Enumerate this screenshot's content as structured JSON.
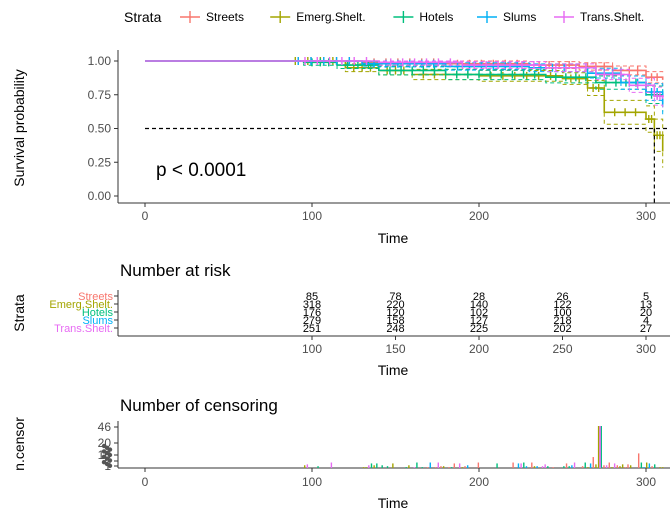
{
  "legend": {
    "title": "Strata",
    "items": [
      {
        "label": "Streets",
        "color": "#F8766D"
      },
      {
        "label": "Emerg.Shelt.",
        "color": "#A3A500"
      },
      {
        "label": "Hotels",
        "color": "#00BF7D"
      },
      {
        "label": "Slums",
        "color": "#00B0F6"
      },
      {
        "label": "Trans.Shelt.",
        "color": "#E76BF3"
      }
    ]
  },
  "chart_data": [
    {
      "type": "line",
      "title": "",
      "xlabel": "Time",
      "ylabel": "Survival probability",
      "xlim": [
        -15,
        310
      ],
      "ylim": [
        -0.04,
        1.06
      ],
      "x_ticks": [
        "0",
        "100",
        "200",
        "300"
      ],
      "y_ticks": [
        "0.00",
        "0.25",
        "0.50",
        "0.75",
        "1.00"
      ],
      "annotation": "p < 0.0001",
      "median_line": 0.5,
      "series": [
        {
          "name": "Streets",
          "x": [
            0,
            130,
            180,
            230,
            260,
            280,
            300,
            310
          ],
          "y": [
            1.0,
            0.99,
            0.98,
            0.97,
            0.96,
            0.93,
            0.88,
            0.86
          ]
        },
        {
          "name": "Emerg.Shelt.",
          "x": [
            0,
            120,
            140,
            160,
            200,
            250,
            265,
            275,
            300,
            305,
            310
          ],
          "y": [
            1.0,
            0.95,
            0.93,
            0.9,
            0.89,
            0.87,
            0.8,
            0.62,
            0.57,
            0.45,
            0.33
          ]
        },
        {
          "name": "Hotels",
          "x": [
            0,
            95,
            115,
            140,
            180,
            240,
            270,
            300,
            310
          ],
          "y": [
            1.0,
            0.99,
            0.97,
            0.93,
            0.9,
            0.88,
            0.84,
            0.75,
            0.7
          ]
        },
        {
          "name": "Slums",
          "x": [
            0,
            130,
            180,
            230,
            265,
            285,
            300,
            310
          ],
          "y": [
            1.0,
            0.98,
            0.96,
            0.95,
            0.91,
            0.84,
            0.77,
            0.68
          ]
        },
        {
          "name": "Trans.Shelt.",
          "x": [
            0,
            140,
            190,
            240,
            270,
            290,
            305,
            310
          ],
          "y": [
            1.0,
            0.99,
            0.97,
            0.95,
            0.9,
            0.82,
            0.74,
            0.72
          ]
        }
      ]
    },
    {
      "type": "table",
      "title": "Number at risk",
      "xlabel": "Time",
      "ylabel": "Strata",
      "x_ticks": [
        "100",
        "150",
        "200",
        "250",
        "300"
      ],
      "strata": [
        "Streets",
        "Emerg.Shelt.",
        "Hotels",
        "Slums",
        "Trans.Shelt."
      ],
      "values": [
        [
          "85",
          "78",
          "28",
          "26",
          "5"
        ],
        [
          "318",
          "220",
          "140",
          "122",
          "13"
        ],
        [
          "176",
          "120",
          "102",
          "100",
          "20"
        ],
        [
          "279",
          "158",
          "127",
          "218",
          "4"
        ],
        [
          "251",
          "248",
          "225",
          "202",
          "27"
        ]
      ]
    },
    {
      "type": "bar",
      "title": "Number of censoring",
      "xlabel": "Time",
      "ylabel": "n.censor",
      "xlim": [
        -15,
        310
      ],
      "ylim": [
        0,
        50
      ],
      "x_ticks": [
        "0",
        "100",
        "200",
        "300"
      ],
      "y_ticks": [
        "1",
        "5",
        "10",
        "20",
        "46"
      ]
    }
  ]
}
